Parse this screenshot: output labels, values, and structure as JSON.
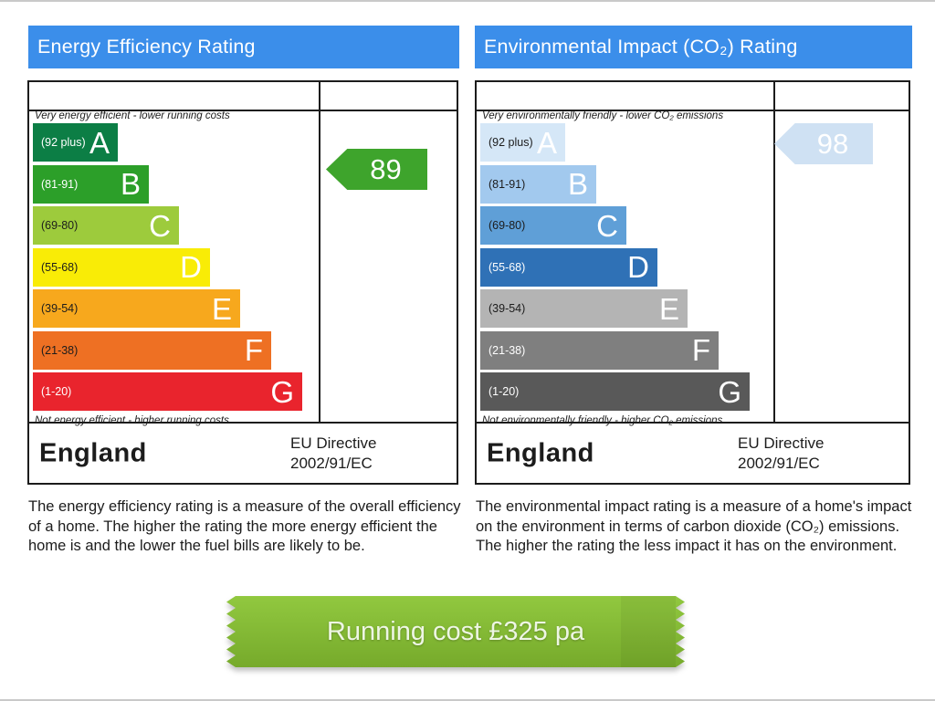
{
  "page": {
    "edge_color": "#c9c9c9",
    "background": "#ffffff"
  },
  "panels": [
    {
      "header": {
        "label": "Energy Efficiency Rating",
        "bg": "#3b8eea",
        "fg": "#ffffff"
      },
      "top_caption": "Very energy efficient - lower running costs",
      "bottom_caption": "Not energy efficient - higher running costs",
      "bands": [
        {
          "letter": "A",
          "range": "(92 plus)",
          "color": "#0c7e45",
          "range_color": "#ffffff"
        },
        {
          "letter": "B",
          "range": "(81-91)",
          "color": "#2c9f29",
          "range_color": "#ffffff"
        },
        {
          "letter": "C",
          "range": "(69-80)",
          "color": "#9dcb3c",
          "range_color": "#1c1c1c"
        },
        {
          "letter": "D",
          "range": "(55-68)",
          "color": "#f9ec06",
          "range_color": "#1c1c1c"
        },
        {
          "letter": "E",
          "range": "(39-54)",
          "color": "#f7a81d",
          "range_color": "#1c1c1c"
        },
        {
          "letter": "F",
          "range": "(21-38)",
          "color": "#ee7023",
          "range_color": "#1c1c1c"
        },
        {
          "letter": "G",
          "range": "(1-20)",
          "color": "#e9242d",
          "range_color": "#ffffff"
        }
      ],
      "arrow": {
        "value": "89",
        "color": "#3ea42c",
        "text_color": "#ffffff"
      },
      "footer": {
        "region": "England",
        "directive_line1": "EU Directive",
        "directive_line2": "2002/91/EC"
      },
      "description": "The energy efficiency rating is a measure of the overall efficiency of a home. The higher the rating the more energy efficient the home is and the lower the fuel bills are likely to be."
    },
    {
      "header": {
        "label": "Environmental Impact (CO₂) Rating",
        "bg": "#3b8eea",
        "fg": "#ffffff"
      },
      "top_caption": "Very environmentally friendly - lower CO₂ emissions",
      "bottom_caption": "Not environmentally friendly - higher CO₂ emissions",
      "bands": [
        {
          "letter": "A",
          "range": "(92 plus)",
          "color": "#d5e7f7",
          "range_color": "#1c1c1c"
        },
        {
          "letter": "B",
          "range": "(81-91)",
          "color": "#a2c9ee",
          "range_color": "#1c1c1c"
        },
        {
          "letter": "C",
          "range": "(69-80)",
          "color": "#5f9fd7",
          "range_color": "#1c1c1c"
        },
        {
          "letter": "D",
          "range": "(55-68)",
          "color": "#2f71b6",
          "range_color": "#ffffff"
        },
        {
          "letter": "E",
          "range": "(39-54)",
          "color": "#b4b4b4",
          "range_color": "#1c1c1c"
        },
        {
          "letter": "F",
          "range": "(21-38)",
          "color": "#7f7f7f",
          "range_color": "#ffffff"
        },
        {
          "letter": "G",
          "range": "(1-20)",
          "color": "#595959",
          "range_color": "#ffffff"
        }
      ],
      "arrow": {
        "value": "98",
        "color": "#cfe1f3",
        "text_color": "#ffffff"
      },
      "footer": {
        "region": "England",
        "directive_line1": "EU Directive",
        "directive_line2": "2002/91/EC"
      },
      "description": "The environmental impact rating is a measure of a home's impact on the environment in terms of carbon dioxide (CO₂) emissions. The higher the rating the less impact it has on the environment."
    }
  ],
  "ribbon": {
    "label": "Running cost £325 pa",
    "value_gbp_pa": 325,
    "top_color": "#91c83f",
    "bottom_color": "#76aa2b",
    "text_color": "#eef6e4"
  },
  "chart_data": [
    {
      "type": "bar",
      "title": "Energy Efficiency Rating",
      "categories": [
        "A",
        "B",
        "C",
        "D",
        "E",
        "F",
        "G"
      ],
      "band_ranges": [
        "92 plus",
        "81-91",
        "69-80",
        "55-68",
        "39-54",
        "21-38",
        "1-20"
      ],
      "band_colors": [
        "#0c7e45",
        "#2c9f29",
        "#9dcb3c",
        "#f9ec06",
        "#f7a81d",
        "#ee7023",
        "#e9242d"
      ],
      "bar_widths_relative": [
        93,
        127,
        160,
        194,
        227,
        261,
        295
      ],
      "current_rating": 89,
      "current_rating_band": "B",
      "region": "England",
      "directive": "EU Directive 2002/91/EC",
      "top_caption": "Very energy efficient - lower running costs",
      "bottom_caption": "Not energy efficient - higher running costs"
    },
    {
      "type": "bar",
      "title": "Environmental Impact (CO₂) Rating",
      "categories": [
        "A",
        "B",
        "C",
        "D",
        "E",
        "F",
        "G"
      ],
      "band_ranges": [
        "92 plus",
        "81-91",
        "69-80",
        "55-68",
        "39-54",
        "21-38",
        "1-20"
      ],
      "band_colors": [
        "#d5e7f7",
        "#a2c9ee",
        "#5f9fd7",
        "#2f71b6",
        "#b4b4b4",
        "#7f7f7f",
        "#595959"
      ],
      "bar_widths_relative": [
        93,
        127,
        160,
        194,
        227,
        261,
        295
      ],
      "current_rating": 98,
      "current_rating_band": "A",
      "region": "England",
      "directive": "EU Directive 2002/91/EC",
      "top_caption": "Very environmentally friendly - lower CO₂ emissions",
      "bottom_caption": "Not environmentally friendly - higher CO₂ emissions"
    }
  ]
}
